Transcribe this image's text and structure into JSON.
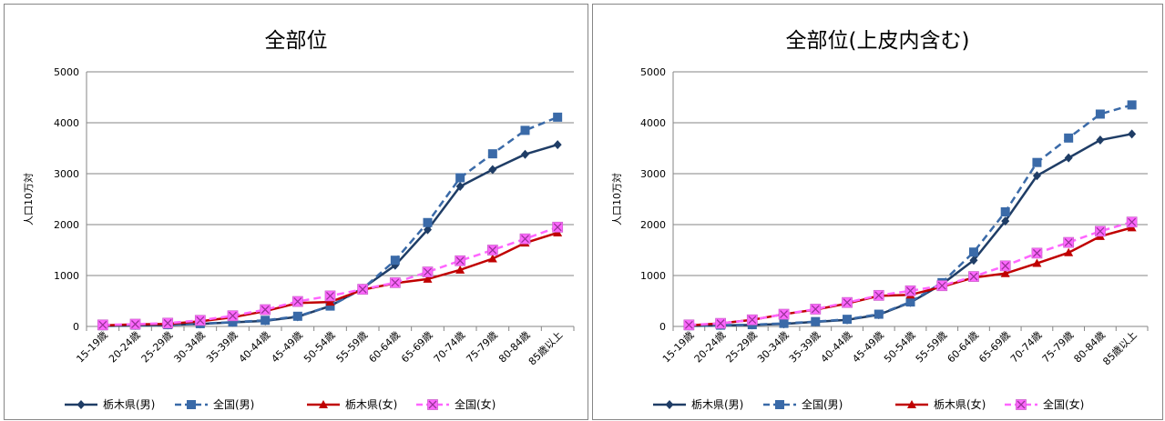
{
  "colors": {
    "tochigi_male": "#1f3d66",
    "national_male": "#3a6aa8",
    "tochigi_female": "#c00000",
    "national_female": "#ff66ff",
    "national_female_marker": "#cc66cc",
    "gridline": "#868686"
  },
  "chart_data": [
    {
      "type": "line",
      "title": "全部位",
      "ylabel": "人口10万対",
      "xlabel": "",
      "ylim": [
        0,
        5000
      ],
      "yticks": [
        0,
        1000,
        2000,
        3000,
        4000,
        5000
      ],
      "grid": true,
      "legend_position": "bottom",
      "categories": [
        "15-19歳",
        "20-24歳",
        "25-29歳",
        "30-34歳",
        "35-39歳",
        "40-44歳",
        "45-49歳",
        "50-54歳",
        "55-59歳",
        "60-64歳",
        "65-69歳",
        "70-74歳",
        "75-79歳",
        "80-84歳",
        "85歳以上"
      ],
      "series": [
        {
          "name": "栃木県(男)",
          "values": [
            10,
            20,
            30,
            50,
            80,
            110,
            190,
            400,
            750,
            1200,
            1900,
            2750,
            3080,
            3380,
            3570
          ]
        },
        {
          "name": "全国(男)",
          "values": [
            15,
            25,
            35,
            55,
            85,
            120,
            200,
            400,
            740,
            1300,
            2040,
            2920,
            3390,
            3850,
            4110
          ]
        },
        {
          "name": "栃木県(女)",
          "values": [
            20,
            40,
            50,
            100,
            180,
            300,
            460,
            480,
            720,
            850,
            930,
            1110,
            1330,
            1640,
            1840
          ]
        },
        {
          "name": "全国(女)",
          "values": [
            30,
            45,
            65,
            120,
            210,
            330,
            490,
            600,
            730,
            860,
            1070,
            1290,
            1500,
            1720,
            1950
          ]
        }
      ]
    },
    {
      "type": "line",
      "title": "全部位(上皮内含む)",
      "ylabel": "人口10万対",
      "xlabel": "",
      "ylim": [
        0,
        5000
      ],
      "yticks": [
        0,
        1000,
        2000,
        3000,
        4000,
        5000
      ],
      "grid": true,
      "legend_position": "bottom",
      "categories": [
        "15-19歳",
        "20-24歳",
        "25-29歳",
        "30-34歳",
        "35-39歳",
        "40-44歳",
        "45-49歳",
        "50-54歳",
        "55-59歳",
        "60-64歳",
        "65-69歳",
        "70-74歳",
        "75-79歳",
        "80-84歳",
        "85歳以上"
      ],
      "series": [
        {
          "name": "栃木県(男)",
          "values": [
            10,
            20,
            30,
            50,
            90,
            130,
            230,
            470,
            830,
            1300,
            2070,
            2960,
            3310,
            3660,
            3780
          ]
        },
        {
          "name": "全国(男)",
          "values": [
            15,
            25,
            35,
            60,
            95,
            140,
            240,
            480,
            860,
            1460,
            2250,
            3220,
            3700,
            4170,
            4350
          ]
        },
        {
          "name": "栃木県(女)",
          "values": [
            20,
            60,
            130,
            240,
            330,
            450,
            600,
            620,
            780,
            960,
            1040,
            1240,
            1450,
            1770,
            1940
          ]
        },
        {
          "name": "全国(女)",
          "values": [
            30,
            60,
            130,
            240,
            340,
            470,
            610,
            700,
            800,
            980,
            1190,
            1440,
            1650,
            1870,
            2050
          ]
        }
      ]
    }
  ]
}
